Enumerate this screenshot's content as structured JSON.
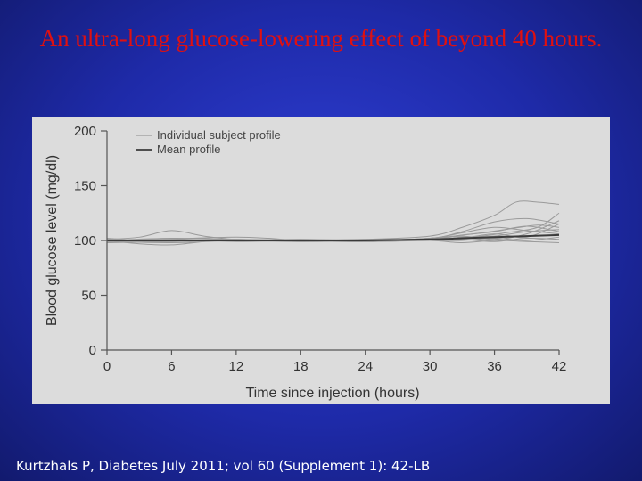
{
  "slide": {
    "title": "An ultra-long glucose-lowering effect of beyond 40 hours.",
    "footer": "Kurtzhals P, Diabetes July 2011; vol 60 (Supplement 1): 42-LB"
  },
  "colors": {
    "title": "#e01010",
    "individual": "#9a9a9a",
    "mean": "#3a3a3a",
    "panel": "#dcdcdc"
  },
  "chart_data": {
    "type": "line",
    "xlabel": "Time since injection (hours)",
    "ylabel": "Blood glucose level (mg/dl)",
    "xlim": [
      0,
      42
    ],
    "ylim": [
      0,
      200
    ],
    "xticks": [
      0,
      6,
      12,
      18,
      24,
      30,
      36,
      42
    ],
    "yticks": [
      0,
      50,
      100,
      150,
      200
    ],
    "legend": {
      "position": "top-left",
      "entries": [
        "Individual subject profile",
        "Mean profile"
      ]
    },
    "series": [
      {
        "name": "Mean profile",
        "role": "mean",
        "x": [
          0,
          6,
          12,
          18,
          24,
          30,
          33,
          36,
          39,
          42
        ],
        "y": [
          100,
          100,
          100,
          100,
          100,
          101,
          102,
          103,
          104,
          105
        ]
      },
      {
        "name": "Individual subject profile",
        "role": "individual",
        "x": [
          0,
          3,
          6,
          9,
          12,
          18,
          24,
          30,
          33,
          36,
          38,
          40,
          42
        ],
        "y": [
          101,
          103,
          109,
          104,
          101,
          100,
          101,
          104,
          112,
          123,
          135,
          135,
          133
        ]
      },
      {
        "name": "Individual subject profile",
        "role": "individual",
        "x": [
          0,
          3,
          6,
          9,
          12,
          18,
          24,
          30,
          33,
          36,
          39,
          42
        ],
        "y": [
          100,
          97,
          96,
          99,
          101,
          99,
          100,
          102,
          108,
          117,
          120,
          115
        ]
      },
      {
        "name": "Individual subject profile",
        "role": "individual",
        "x": [
          0,
          4,
          8,
          12,
          15,
          18,
          24,
          30,
          34,
          37,
          40,
          42
        ],
        "y": [
          102,
          100,
          102,
          103,
          102,
          100,
          99,
          101,
          103,
          107,
          112,
          125
        ]
      },
      {
        "name": "Individual subject profile",
        "role": "individual",
        "x": [
          0,
          6,
          12,
          18,
          24,
          30,
          34,
          37,
          40,
          42
        ],
        "y": [
          99,
          98,
          100,
          101,
          100,
          102,
          106,
          110,
          114,
          112
        ]
      },
      {
        "name": "Individual subject profile",
        "role": "individual",
        "x": [
          0,
          6,
          12,
          18,
          24,
          30,
          33,
          36,
          39,
          42
        ],
        "y": [
          100,
          101,
          99,
          100,
          101,
          100,
          103,
          104,
          108,
          110
        ]
      },
      {
        "name": "Individual subject profile",
        "role": "individual",
        "x": [
          0,
          6,
          12,
          18,
          24,
          30,
          33,
          36,
          39,
          42
        ],
        "y": [
          101,
          100,
          101,
          99,
          100,
          101,
          104,
          101,
          106,
          118
        ]
      },
      {
        "name": "Individual subject profile",
        "role": "individual",
        "x": [
          0,
          6,
          12,
          18,
          24,
          30,
          33,
          36,
          39,
          42
        ],
        "y": [
          98,
          99,
          100,
          100,
          99,
          100,
          100,
          102,
          100,
          103
        ]
      },
      {
        "name": "Individual subject profile",
        "role": "individual",
        "x": [
          0,
          6,
          12,
          18,
          24,
          30,
          33,
          36,
          39,
          42
        ],
        "y": [
          100,
          102,
          101,
          100,
          100,
          101,
          101,
          99,
          102,
          101
        ]
      },
      {
        "name": "Individual subject profile",
        "role": "individual",
        "x": [
          0,
          6,
          12,
          18,
          24,
          30,
          33,
          36,
          39,
          42
        ],
        "y": [
          101,
          100,
          100,
          99,
          101,
          100,
          98,
          100,
          99,
          98
        ]
      },
      {
        "name": "Individual subject profile",
        "role": "individual",
        "x": [
          0,
          6,
          12,
          18,
          24,
          30,
          33,
          36,
          39,
          42
        ],
        "y": [
          100,
          99,
          101,
          100,
          100,
          102,
          107,
          112,
          109,
          106
        ]
      },
      {
        "name": "Individual subject profile",
        "role": "individual",
        "x": [
          0,
          6,
          12,
          18,
          24,
          30,
          33,
          36,
          39,
          42
        ],
        "y": [
          99,
          100,
          100,
          101,
          100,
          100,
          102,
          106,
          103,
          115
        ]
      },
      {
        "name": "Individual subject profile",
        "role": "individual",
        "x": [
          0,
          6,
          12,
          18,
          24,
          30,
          33,
          36,
          39,
          42
        ],
        "y": [
          100,
          101,
          100,
          100,
          99,
          101,
          105,
          108,
          113,
          108
        ]
      }
    ]
  }
}
